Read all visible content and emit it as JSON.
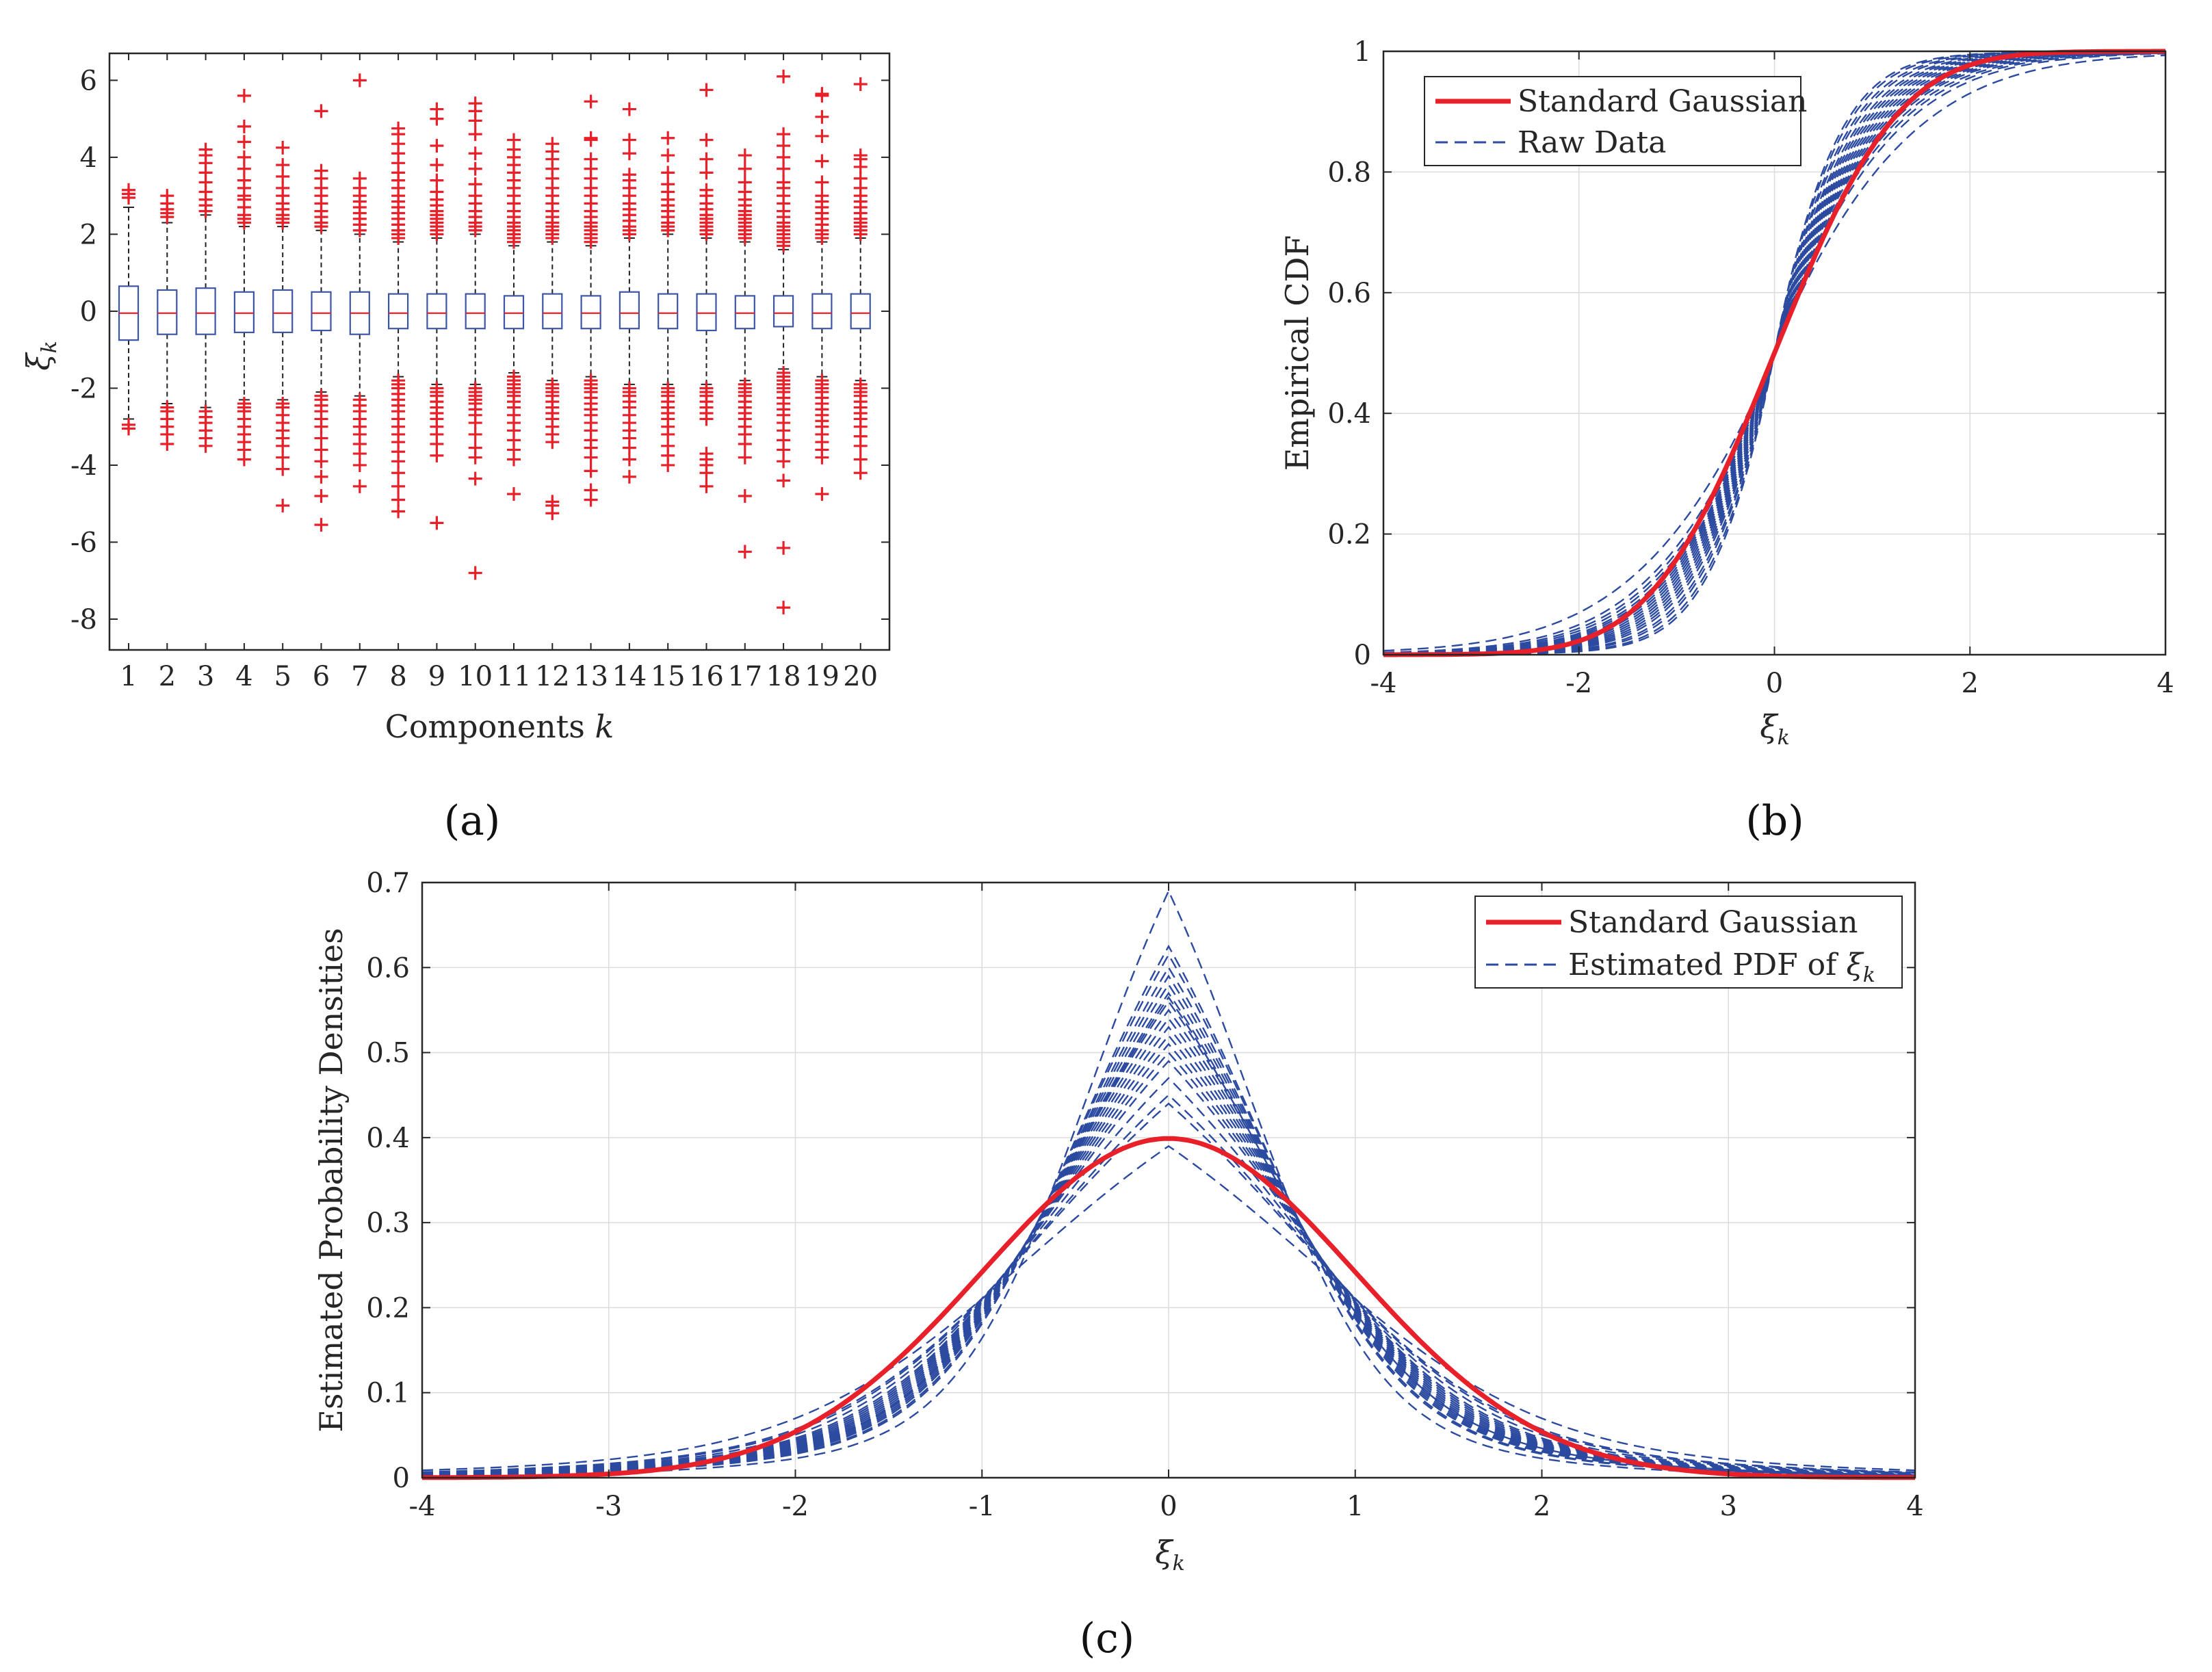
{
  "colors": {
    "gaussian": "#e8202a",
    "raw": "#2b4aa0",
    "box": "#3c55a6",
    "median": "#e8202a",
    "outlier": "#e8202a",
    "grid": "#dcdcdc",
    "axis": "#262626"
  },
  "chart_data": [
    {
      "type": "box",
      "panel_label": "(a)",
      "xlabel_text": "Components",
      "xlabel_var": "k",
      "ylabel_var": "ξ",
      "ylabel_sub": "k",
      "ylim": [
        -8.8,
        6.7
      ],
      "yticks": [
        -8,
        -6,
        -4,
        -2,
        0,
        2,
        4,
        6
      ],
      "yticklabels": [
        "-8",
        "-6",
        "-4",
        "-2",
        "0",
        "2",
        "4",
        "6"
      ],
      "grid": false,
      "categories": [
        "1",
        "2",
        "3",
        "4",
        "5",
        "6",
        "7",
        "8",
        "9",
        "10",
        "11",
        "12",
        "13",
        "14",
        "15",
        "16",
        "17",
        "18",
        "19",
        "20"
      ],
      "boxes": [
        {
          "q1": -0.75,
          "median": -0.05,
          "q3": 0.65,
          "whisker_low": -2.8,
          "whisker_high": 2.7,
          "outliers": [
            2.95,
            3.05,
            3.15,
            -2.95,
            -3.05
          ]
        },
        {
          "q1": -0.6,
          "median": -0.05,
          "q3": 0.55,
          "whisker_low": -2.4,
          "whisker_high": 2.3,
          "outliers": [
            2.45,
            2.55,
            2.65,
            2.8,
            3.0,
            -2.5,
            -2.6,
            -2.8,
            -3.0,
            -3.2,
            -3.45
          ]
        },
        {
          "q1": -0.6,
          "median": -0.05,
          "q3": 0.6,
          "whisker_low": -2.5,
          "whisker_high": 2.5,
          "outliers": [
            2.6,
            2.75,
            2.9,
            3.1,
            3.35,
            3.6,
            3.85,
            4.05,
            4.2,
            -2.6,
            -2.75,
            -2.9,
            -3.1,
            -3.3,
            -3.5
          ]
        },
        {
          "q1": -0.55,
          "median": -0.05,
          "q3": 0.5,
          "whisker_low": -2.3,
          "whisker_high": 2.2,
          "outliers": [
            2.3,
            2.4,
            2.5,
            2.7,
            2.9,
            3.0,
            3.2,
            3.4,
            3.7,
            4.0,
            4.4,
            4.8,
            5.6,
            -2.4,
            -2.5,
            -2.6,
            -2.8,
            -3.0,
            -3.2,
            -3.4,
            -3.6,
            -3.85
          ]
        },
        {
          "q1": -0.55,
          "median": -0.05,
          "q3": 0.55,
          "whisker_low": -2.3,
          "whisker_high": 2.2,
          "outliers": [
            2.3,
            2.4,
            2.5,
            2.65,
            2.8,
            3.0,
            3.2,
            3.5,
            3.8,
            4.25,
            -2.4,
            -2.5,
            -2.7,
            -2.9,
            -3.1,
            -3.3,
            -3.5,
            -3.8,
            -4.1,
            -5.05
          ]
        },
        {
          "q1": -0.5,
          "median": -0.05,
          "q3": 0.5,
          "whisker_low": -2.1,
          "whisker_high": 2.1,
          "outliers": [
            2.2,
            2.3,
            2.45,
            2.6,
            2.8,
            3.0,
            3.2,
            3.45,
            3.65,
            5.2,
            -2.2,
            -2.3,
            -2.45,
            -2.6,
            -2.8,
            -3.0,
            -3.3,
            -3.6,
            -3.9,
            -4.3,
            -4.8,
            -5.55
          ]
        },
        {
          "q1": -0.6,
          "median": -0.05,
          "q3": 0.5,
          "whisker_low": -2.2,
          "whisker_high": 2.0,
          "outliers": [
            2.1,
            2.25,
            2.4,
            2.55,
            2.7,
            2.85,
            3.0,
            3.2,
            3.45,
            6.0,
            -2.3,
            -2.45,
            -2.6,
            -2.8,
            -3.0,
            -3.2,
            -3.45,
            -3.7,
            -4.0,
            -4.55
          ]
        },
        {
          "q1": -0.45,
          "median": -0.05,
          "q3": 0.45,
          "whisker_low": -1.7,
          "whisker_high": 1.8,
          "outliers": [
            1.9,
            2.0,
            2.1,
            2.25,
            2.4,
            2.55,
            2.7,
            2.85,
            3.0,
            3.2,
            3.4,
            3.6,
            3.85,
            4.1,
            4.35,
            4.6,
            4.75,
            -1.8,
            -1.9,
            -2.0,
            -2.15,
            -2.3,
            -2.45,
            -2.6,
            -2.8,
            -3.0,
            -3.2,
            -3.4,
            -3.65,
            -3.9,
            -4.2,
            -4.55,
            -4.9,
            -5.2
          ]
        },
        {
          "q1": -0.45,
          "median": -0.05,
          "q3": 0.45,
          "whisker_low": -1.9,
          "whisker_high": 1.9,
          "outliers": [
            2.0,
            2.1,
            2.2,
            2.3,
            2.4,
            2.5,
            2.6,
            2.75,
            2.9,
            3.1,
            3.4,
            3.8,
            4.3,
            5.0,
            5.25,
            -2.0,
            -2.1,
            -2.2,
            -2.35,
            -2.5,
            -2.65,
            -2.8,
            -3.0,
            -3.2,
            -3.45,
            -3.75,
            -5.5
          ]
        },
        {
          "q1": -0.45,
          "median": -0.05,
          "q3": 0.45,
          "whisker_low": -1.9,
          "whisker_high": 2.0,
          "outliers": [
            2.1,
            2.2,
            2.3,
            2.45,
            2.6,
            2.8,
            3.0,
            3.3,
            3.7,
            4.1,
            4.6,
            4.95,
            5.2,
            5.4,
            -2.0,
            -2.1,
            -2.2,
            -2.3,
            -2.4,
            -2.55,
            -2.7,
            -2.9,
            -3.2,
            -3.55,
            -3.8,
            -4.35,
            -6.8
          ]
        },
        {
          "q1": -0.45,
          "median": -0.05,
          "q3": 0.4,
          "whisker_low": -1.6,
          "whisker_high": 1.7,
          "outliers": [
            1.8,
            1.9,
            2.0,
            2.1,
            2.2,
            2.3,
            2.45,
            2.6,
            2.8,
            3.0,
            3.2,
            3.4,
            3.6,
            3.8,
            4.0,
            4.2,
            4.45,
            -1.7,
            -1.8,
            -1.9,
            -2.0,
            -2.1,
            -2.2,
            -2.35,
            -2.5,
            -2.7,
            -2.9,
            -3.1,
            -3.35,
            -3.6,
            -3.85,
            -4.75
          ]
        },
        {
          "q1": -0.45,
          "median": -0.05,
          "q3": 0.45,
          "whisker_low": -1.8,
          "whisker_high": 1.8,
          "outliers": [
            1.9,
            2.0,
            2.1,
            2.2,
            2.3,
            2.45,
            2.6,
            2.8,
            3.0,
            3.2,
            3.45,
            3.7,
            3.95,
            4.15,
            4.35,
            -1.9,
            -2.0,
            -2.1,
            -2.2,
            -2.35,
            -2.5,
            -2.65,
            -2.8,
            -3.0,
            -3.2,
            -3.4,
            -4.95,
            -5.05,
            -5.25
          ]
        },
        {
          "q1": -0.45,
          "median": -0.05,
          "q3": 0.4,
          "whisker_low": -1.7,
          "whisker_high": 1.7,
          "outliers": [
            1.8,
            1.9,
            2.0,
            2.1,
            2.2,
            2.3,
            2.45,
            2.6,
            2.8,
            3.0,
            3.2,
            3.45,
            3.7,
            3.95,
            4.45,
            4.5,
            5.45,
            -1.8,
            -1.9,
            -2.0,
            -2.1,
            -2.25,
            -2.4,
            -2.55,
            -2.7,
            -2.9,
            -3.1,
            -3.35,
            -3.55,
            -3.8,
            -4.15,
            -4.65,
            -4.9
          ]
        },
        {
          "q1": -0.45,
          "median": -0.05,
          "q3": 0.5,
          "whisker_low": -1.9,
          "whisker_high": 1.9,
          "outliers": [
            2.0,
            2.1,
            2.2,
            2.35,
            2.5,
            2.65,
            2.8,
            3.0,
            3.2,
            3.4,
            3.55,
            4.1,
            4.45,
            5.25,
            -2.0,
            -2.1,
            -2.2,
            -2.35,
            -2.5,
            -2.7,
            -2.9,
            -3.1,
            -3.3,
            -3.55,
            -3.85,
            -4.3
          ]
        },
        {
          "q1": -0.45,
          "median": -0.05,
          "q3": 0.45,
          "whisker_low": -1.9,
          "whisker_high": 2.0,
          "outliers": [
            2.1,
            2.2,
            2.3,
            2.45,
            2.6,
            2.75,
            2.9,
            3.1,
            3.3,
            3.6,
            4.05,
            4.5,
            -2.0,
            -2.1,
            -2.2,
            -2.35,
            -2.5,
            -2.65,
            -2.8,
            -3.0,
            -3.2,
            -3.5,
            -3.75,
            -4.0
          ]
        },
        {
          "q1": -0.5,
          "median": -0.05,
          "q3": 0.45,
          "whisker_low": -1.9,
          "whisker_high": 1.9,
          "outliers": [
            2.0,
            2.1,
            2.2,
            2.3,
            2.4,
            2.5,
            2.65,
            2.8,
            3.0,
            3.15,
            3.6,
            3.95,
            4.45,
            5.75,
            -2.0,
            -2.1,
            -2.2,
            -2.35,
            -2.5,
            -2.65,
            -2.8,
            -3.7,
            -3.85,
            -4.0,
            -4.2,
            -4.55
          ]
        },
        {
          "q1": -0.45,
          "median": -0.05,
          "q3": 0.4,
          "whisker_low": -1.8,
          "whisker_high": 1.8,
          "outliers": [
            1.9,
            2.0,
            2.1,
            2.2,
            2.3,
            2.4,
            2.5,
            2.6,
            2.75,
            2.9,
            3.1,
            3.35,
            3.7,
            4.05,
            -1.9,
            -2.0,
            -2.1,
            -2.2,
            -2.35,
            -2.5,
            -2.65,
            -2.8,
            -3.0,
            -3.2,
            -3.45,
            -3.8,
            -4.8,
            -6.25
          ]
        },
        {
          "q1": -0.4,
          "median": -0.05,
          "q3": 0.4,
          "whisker_low": -1.5,
          "whisker_high": 1.6,
          "outliers": [
            1.7,
            1.8,
            1.9,
            2.0,
            2.1,
            2.2,
            2.3,
            2.45,
            2.6,
            2.8,
            3.0,
            3.2,
            3.35,
            3.7,
            4.0,
            4.3,
            4.6,
            6.1,
            -1.6,
            -1.7,
            -1.8,
            -1.9,
            -2.0,
            -2.1,
            -2.25,
            -2.4,
            -2.55,
            -2.7,
            -2.9,
            -3.1,
            -3.35,
            -3.6,
            -3.9,
            -4.4,
            -6.15,
            -7.7
          ]
        },
        {
          "q1": -0.45,
          "median": -0.05,
          "q3": 0.45,
          "whisker_low": -1.7,
          "whisker_high": 1.8,
          "outliers": [
            1.9,
            2.0,
            2.1,
            2.25,
            2.4,
            2.55,
            2.7,
            2.85,
            3.0,
            3.35,
            3.9,
            4.55,
            5.05,
            5.6,
            5.65,
            -1.8,
            -1.9,
            -2.0,
            -2.1,
            -2.25,
            -2.4,
            -2.55,
            -2.7,
            -2.85,
            -3.0,
            -3.2,
            -3.4,
            -3.6,
            -3.8,
            -4.75
          ]
        },
        {
          "q1": -0.45,
          "median": -0.05,
          "q3": 0.45,
          "whisker_low": -1.8,
          "whisker_high": 1.9,
          "outliers": [
            2.0,
            2.1,
            2.2,
            2.3,
            2.4,
            2.55,
            2.7,
            2.85,
            3.0,
            3.2,
            3.45,
            3.75,
            3.95,
            4.05,
            5.9,
            -1.9,
            -2.0,
            -2.1,
            -2.2,
            -2.35,
            -2.5,
            -2.65,
            -2.8,
            -3.0,
            -3.25,
            -3.5,
            -3.85,
            -4.2
          ]
        }
      ]
    },
    {
      "type": "line",
      "panel_label": "(b)",
      "ylabel": "Empirical CDF",
      "xlabel_var": "ξ",
      "xlabel_sub": "k",
      "xlim": [
        -4,
        4
      ],
      "ylim": [
        0,
        1
      ],
      "xticks": [
        -4,
        -2,
        0,
        2,
        4
      ],
      "xticklabels": [
        "-4",
        "-2",
        "0",
        "2",
        "4"
      ],
      "yticks": [
        0,
        0.2,
        0.4,
        0.6,
        0.8,
        1
      ],
      "yticklabels": [
        "0",
        "0.2",
        "0.4",
        "0.6",
        "0.8",
        "1"
      ],
      "grid": true,
      "legend_position": "top-left",
      "legend": [
        "Standard Gaussian",
        "Raw Data"
      ],
      "series": [
        {
          "name": "Standard Gaussian",
          "style": "solid",
          "function": "normal_cdf",
          "mu": 0,
          "sigma": 1
        },
        {
          "name": "Raw Data",
          "style": "dashed",
          "function": "laplace_cdf",
          "b_values": [
            0.5,
            0.52,
            0.55,
            0.57,
            0.6,
            0.62,
            0.64,
            0.66,
            0.68,
            0.7,
            0.72,
            0.74,
            0.76,
            0.78,
            0.8,
            0.82,
            0.85,
            0.88,
            0.92,
            1.05
          ]
        }
      ]
    },
    {
      "type": "line",
      "panel_label": "(c)",
      "ylabel": "Estimated Probability Densities",
      "xlabel_var": "ξ",
      "xlabel_sub": "k",
      "xlim": [
        -4,
        4
      ],
      "ylim": [
        0,
        0.7
      ],
      "xticks": [
        -4,
        -3,
        -2,
        -1,
        0,
        1,
        2,
        3,
        4
      ],
      "xticklabels": [
        "-4",
        "-3",
        "-2",
        "-1",
        "0",
        "1",
        "2",
        "3",
        "4"
      ],
      "yticks": [
        0,
        0.1,
        0.2,
        0.3,
        0.4,
        0.5,
        0.6,
        0.7
      ],
      "yticklabels": [
        "0",
        "0.1",
        "0.2",
        "0.3",
        "0.4",
        "0.5",
        "0.6",
        "0.7"
      ],
      "grid": true,
      "legend_position": "top-right",
      "legend": [
        "Standard Gaussian",
        "Estimated PDF of"
      ],
      "legend_var": "ξ",
      "legend_sub": "k",
      "series": [
        {
          "name": "Standard Gaussian",
          "style": "solid",
          "function": "normal_pdf",
          "mu": 0,
          "sigma": 1
        },
        {
          "name": "Estimated PDF",
          "style": "dashed",
          "function": "laplace_gauss_mix_pdf",
          "peak_values": [
            0.39,
            0.44,
            0.45,
            0.47,
            0.49,
            0.5,
            0.51,
            0.52,
            0.53,
            0.54,
            0.55,
            0.56,
            0.565,
            0.57,
            0.58,
            0.59,
            0.6,
            0.615,
            0.625,
            0.69
          ]
        }
      ]
    }
  ]
}
